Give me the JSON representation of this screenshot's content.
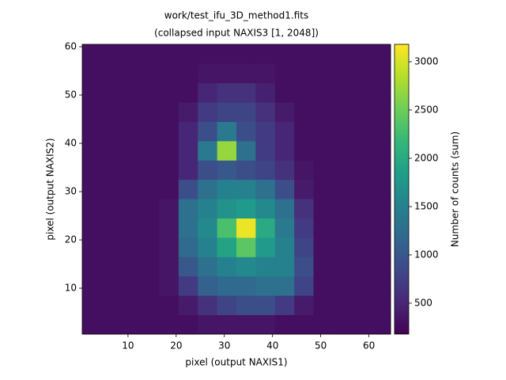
{
  "chart_data": {
    "type": "heatmap",
    "title": "work/test_ifu_3D_method1.fits",
    "subtitle": "(collapsed input NAXIS3 [1, 2048])",
    "x_label": "pixel (output NAXIS1)",
    "y_label": "pixel (output NAXIS2)",
    "colorbar_label": "Number of counts (sum)",
    "xbins": [
      0.5,
      4.5,
      8.5,
      12.5,
      16.5,
      20.5,
      24.5,
      28.5,
      32.5,
      36.5,
      40.5,
      44.5,
      48.5,
      52.5,
      56.5,
      60.5,
      64.5
    ],
    "ybins": [
      0.5,
      4.5,
      8.5,
      12.5,
      16.5,
      20.5,
      24.5,
      28.5,
      32.5,
      36.5,
      40.5,
      44.5,
      48.5,
      52.5,
      56.5,
      60.5
    ],
    "z": [
      [
        300,
        300,
        300,
        300,
        300,
        300,
        350,
        350,
        350,
        350,
        300,
        300,
        300,
        300,
        300,
        300
      ],
      [
        300,
        300,
        300,
        300,
        300,
        400,
        600,
        800,
        900,
        900,
        700,
        400,
        300,
        300,
        300,
        300
      ],
      [
        300,
        300,
        300,
        300,
        350,
        700,
        1100,
        1200,
        1200,
        1300,
        1300,
        800,
        300,
        300,
        300,
        300
      ],
      [
        300,
        300,
        300,
        300,
        350,
        1000,
        1300,
        1500,
        1600,
        1500,
        1500,
        900,
        300,
        300,
        300,
        300
      ],
      [
        300,
        300,
        300,
        300,
        350,
        1200,
        1500,
        1900,
        2400,
        1800,
        1500,
        800,
        300,
        300,
        300,
        300
      ],
      [
        300,
        300,
        300,
        300,
        350,
        1300,
        1600,
        2300,
        3100,
        2000,
        1400,
        700,
        300,
        300,
        300,
        300
      ],
      [
        300,
        300,
        300,
        300,
        350,
        1300,
        1500,
        1700,
        1800,
        1600,
        1300,
        600,
        300,
        300,
        300,
        300
      ],
      [
        300,
        300,
        300,
        300,
        300,
        900,
        1300,
        1500,
        1500,
        1300,
        900,
        400,
        300,
        300,
        300,
        300
      ],
      [
        300,
        300,
        300,
        300,
        300,
        500,
        900,
        1000,
        900,
        800,
        600,
        350,
        300,
        300,
        300,
        300
      ],
      [
        300,
        300,
        300,
        300,
        300,
        500,
        1400,
        2700,
        1300,
        700,
        500,
        300,
        300,
        300,
        300,
        300
      ],
      [
        300,
        300,
        300,
        300,
        300,
        500,
        900,
        1400,
        900,
        700,
        500,
        300,
        300,
        300,
        300,
        300
      ],
      [
        300,
        300,
        300,
        300,
        300,
        400,
        700,
        800,
        800,
        600,
        400,
        300,
        300,
        300,
        300,
        300
      ],
      [
        300,
        300,
        300,
        300,
        300,
        300,
        500,
        600,
        600,
        450,
        300,
        300,
        300,
        300,
        300,
        300
      ],
      [
        300,
        300,
        300,
        300,
        300,
        300,
        350,
        350,
        350,
        350,
        300,
        300,
        300,
        300,
        300,
        300
      ],
      [
        300,
        300,
        300,
        300,
        300,
        300,
        300,
        300,
        300,
        300,
        300,
        300,
        300,
        300,
        300,
        300
      ]
    ],
    "xlim": [
      0.5,
      64.5
    ],
    "ylim": [
      0.5,
      60.5
    ],
    "xticks": [
      10,
      20,
      30,
      40,
      50,
      60
    ],
    "yticks": [
      10,
      20,
      30,
      40,
      50,
      60
    ],
    "clim": [
      180,
      3180
    ],
    "cticks": [
      500,
      1000,
      1500,
      2000,
      2500,
      3000
    ],
    "colormap": [
      "#440154",
      "#482878",
      "#3e4989",
      "#31688e",
      "#26828e",
      "#1f9e89",
      "#35b779",
      "#6ece58",
      "#b5de2b",
      "#fde725"
    ]
  }
}
